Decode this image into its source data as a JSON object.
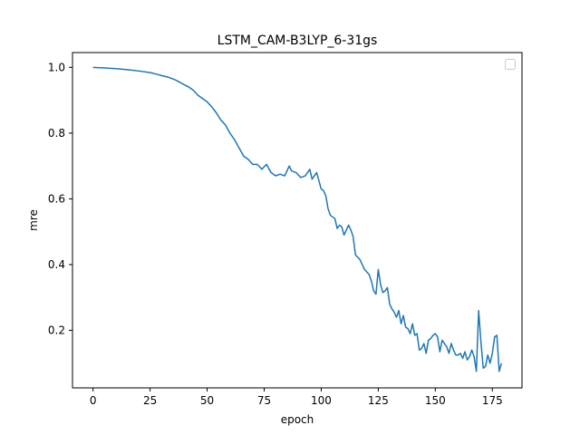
{
  "chart_data": {
    "type": "line",
    "title": "LSTM_CAM-B3LYP_6-31gs",
    "xlabel": "epoch",
    "ylabel": "mre",
    "xlim": [
      -9,
      188
    ],
    "ylim": [
      0.025,
      1.045
    ],
    "xticks": [
      0,
      25,
      50,
      75,
      100,
      125,
      150,
      175
    ],
    "yticks": [
      0.2,
      0.4,
      0.6,
      0.8,
      1.0
    ],
    "xtick_labels": [
      "0",
      "25",
      "50",
      "75",
      "100",
      "125",
      "150",
      "175"
    ],
    "ytick_labels": [
      "0.2",
      "0.4",
      "0.6",
      "0.8",
      "1.0"
    ],
    "legend": {
      "position": "top-right",
      "entries": []
    },
    "grid": false,
    "series": [
      {
        "name": "mre",
        "color": "#1f77b4",
        "x": [
          0,
          5,
          10,
          15,
          20,
          25,
          28,
          30,
          33,
          36,
          38,
          40,
          42,
          44,
          46,
          48,
          50,
          52,
          54,
          56,
          58,
          60,
          62,
          64,
          66,
          68,
          70,
          72,
          74,
          76,
          78,
          80,
          82,
          84,
          86,
          87,
          89,
          91,
          93,
          95,
          96,
          97,
          98,
          100,
          101,
          102,
          103,
          104,
          106,
          107,
          108,
          109,
          110,
          112,
          113,
          114,
          115,
          117,
          119,
          121,
          122,
          123,
          124,
          125,
          126,
          127,
          128,
          129,
          130,
          131,
          132,
          133,
          134,
          135,
          136,
          137,
          138,
          139,
          140,
          141,
          142,
          143,
          144,
          145,
          146,
          147,
          148,
          149,
          150,
          151,
          152,
          153,
          154,
          155,
          156,
          157,
          158,
          159,
          160,
          161,
          162,
          163,
          164,
          165,
          166,
          167,
          168,
          169,
          170,
          171,
          172,
          173,
          174,
          175,
          176,
          177,
          178,
          179
        ],
        "values": [
          1.0,
          0.998,
          0.996,
          0.993,
          0.989,
          0.984,
          0.979,
          0.975,
          0.97,
          0.962,
          0.955,
          0.947,
          0.94,
          0.93,
          0.915,
          0.905,
          0.895,
          0.88,
          0.862,
          0.84,
          0.825,
          0.8,
          0.78,
          0.755,
          0.73,
          0.72,
          0.705,
          0.705,
          0.69,
          0.705,
          0.68,
          0.67,
          0.675,
          0.67,
          0.7,
          0.685,
          0.68,
          0.665,
          0.67,
          0.69,
          0.66,
          0.67,
          0.68,
          0.63,
          0.625,
          0.61,
          0.57,
          0.55,
          0.54,
          0.51,
          0.52,
          0.515,
          0.49,
          0.52,
          0.505,
          0.485,
          0.43,
          0.415,
          0.385,
          0.37,
          0.35,
          0.32,
          0.31,
          0.385,
          0.34,
          0.315,
          0.32,
          0.33,
          0.28,
          0.265,
          0.255,
          0.24,
          0.26,
          0.22,
          0.245,
          0.21,
          0.205,
          0.19,
          0.22,
          0.185,
          0.19,
          0.14,
          0.145,
          0.16,
          0.13,
          0.17,
          0.175,
          0.185,
          0.19,
          0.18,
          0.135,
          0.17,
          0.16,
          0.15,
          0.13,
          0.16,
          0.14,
          0.125,
          0.125,
          0.13,
          0.115,
          0.135,
          0.11,
          0.12,
          0.14,
          0.12,
          0.075,
          0.26,
          0.165,
          0.085,
          0.09,
          0.125,
          0.1,
          0.13,
          0.18,
          0.185,
          0.075,
          0.1
        ]
      }
    ]
  }
}
